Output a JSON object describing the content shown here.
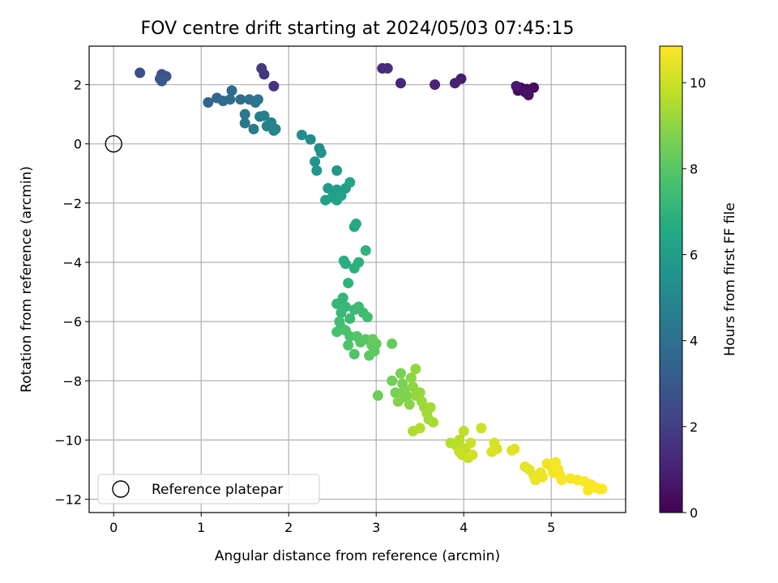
{
  "chart_data": {
    "type": "scatter",
    "title": "FOV centre drift starting at 2024/05/03 07:45:15",
    "xlabel": "Angular distance from reference (arcmin)",
    "ylabel": "Rotation from reference (arcmin)",
    "xlim": [
      -0.28,
      5.85
    ],
    "ylim": [
      -12.45,
      3.3
    ],
    "xticks": [
      0,
      1,
      2,
      3,
      4,
      5
    ],
    "yticks": [
      -12,
      -10,
      -8,
      -6,
      -4,
      -2,
      0,
      2
    ],
    "grid": true,
    "colormap": "viridis",
    "colorbar": {
      "label": "Hours from first FF file",
      "range": [
        0,
        10.85
      ],
      "ticks": [
        0,
        2,
        4,
        6,
        8,
        10
      ]
    },
    "legend": {
      "position": "lower-left",
      "entries": [
        "Reference platepar"
      ]
    },
    "reference_point": {
      "x": 0,
      "y": 0,
      "label": "Reference platepar"
    },
    "points": [
      {
        "x": 4.65,
        "y": 1.9,
        "t": 0.1
      },
      {
        "x": 4.72,
        "y": 1.85,
        "t": 0.2
      },
      {
        "x": 4.62,
        "y": 1.8,
        "t": 0.3
      },
      {
        "x": 4.8,
        "y": 1.9,
        "t": 0.4
      },
      {
        "x": 4.7,
        "y": 1.75,
        "t": 0.5
      },
      {
        "x": 4.74,
        "y": 1.65,
        "t": 0.6
      },
      {
        "x": 4.6,
        "y": 1.95,
        "t": 0.7
      },
      {
        "x": 3.97,
        "y": 2.2,
        "t": 0.9
      },
      {
        "x": 3.9,
        "y": 2.05,
        "t": 1.0
      },
      {
        "x": 3.67,
        "y": 2.0,
        "t": 1.1
      },
      {
        "x": 3.28,
        "y": 2.05,
        "t": 1.2
      },
      {
        "x": 3.07,
        "y": 2.55,
        "t": 1.35
      },
      {
        "x": 3.13,
        "y": 2.55,
        "t": 1.45
      },
      {
        "x": 1.83,
        "y": 1.95,
        "t": 1.6
      },
      {
        "x": 1.72,
        "y": 2.35,
        "t": 1.7
      },
      {
        "x": 1.69,
        "y": 2.55,
        "t": 1.8
      },
      {
        "x": 0.3,
        "y": 2.4,
        "t": 2.6
      },
      {
        "x": 0.55,
        "y": 2.35,
        "t": 2.75
      },
      {
        "x": 0.6,
        "y": 2.28,
        "t": 2.85
      },
      {
        "x": 0.53,
        "y": 2.2,
        "t": 2.95
      },
      {
        "x": 0.55,
        "y": 2.12,
        "t": 3.0
      },
      {
        "x": 1.08,
        "y": 1.4,
        "t": 3.5
      },
      {
        "x": 1.18,
        "y": 1.55,
        "t": 3.6
      },
      {
        "x": 1.25,
        "y": 1.45,
        "t": 3.7
      },
      {
        "x": 1.35,
        "y": 1.8,
        "t": 3.8
      },
      {
        "x": 1.33,
        "y": 1.5,
        "t": 3.85
      },
      {
        "x": 1.45,
        "y": 1.5,
        "t": 3.95
      },
      {
        "x": 1.55,
        "y": 1.5,
        "t": 4.05
      },
      {
        "x": 1.62,
        "y": 1.4,
        "t": 4.1
      },
      {
        "x": 1.65,
        "y": 1.5,
        "t": 4.2
      },
      {
        "x": 1.5,
        "y": 1.0,
        "t": 4.3
      },
      {
        "x": 1.5,
        "y": 0.7,
        "t": 4.35
      },
      {
        "x": 1.6,
        "y": 0.5,
        "t": 4.45
      },
      {
        "x": 1.67,
        "y": 0.92,
        "t": 4.55
      },
      {
        "x": 1.72,
        "y": 0.95,
        "t": 4.6
      },
      {
        "x": 1.8,
        "y": 0.72,
        "t": 4.7
      },
      {
        "x": 1.75,
        "y": 0.6,
        "t": 4.75
      },
      {
        "x": 1.83,
        "y": 0.45,
        "t": 4.85
      },
      {
        "x": 1.85,
        "y": 0.5,
        "t": 4.9
      },
      {
        "x": 2.15,
        "y": 0.3,
        "t": 5.2
      },
      {
        "x": 2.25,
        "y": 0.15,
        "t": 5.3
      },
      {
        "x": 2.35,
        "y": -0.15,
        "t": 5.4
      },
      {
        "x": 2.37,
        "y": -0.3,
        "t": 5.45
      },
      {
        "x": 2.3,
        "y": -0.6,
        "t": 5.55
      },
      {
        "x": 2.32,
        "y": -0.9,
        "t": 5.6
      },
      {
        "x": 2.55,
        "y": -0.9,
        "t": 5.75
      },
      {
        "x": 2.45,
        "y": -1.5,
        "t": 5.85
      },
      {
        "x": 2.55,
        "y": -1.55,
        "t": 5.95
      },
      {
        "x": 2.6,
        "y": -1.6,
        "t": 6.0
      },
      {
        "x": 2.65,
        "y": -1.5,
        "t": 6.05
      },
      {
        "x": 2.5,
        "y": -1.8,
        "t": 6.1
      },
      {
        "x": 2.42,
        "y": -1.9,
        "t": 6.15
      },
      {
        "x": 2.55,
        "y": -1.9,
        "t": 6.2
      },
      {
        "x": 2.6,
        "y": -1.75,
        "t": 6.25
      },
      {
        "x": 2.7,
        "y": -1.3,
        "t": 6.3
      },
      {
        "x": 2.75,
        "y": -2.8,
        "t": 6.5
      },
      {
        "x": 2.77,
        "y": -2.7,
        "t": 6.55
      },
      {
        "x": 2.63,
        "y": -3.95,
        "t": 6.75
      },
      {
        "x": 2.65,
        "y": -4.05,
        "t": 6.8
      },
      {
        "x": 2.75,
        "y": -4.2,
        "t": 6.85
      },
      {
        "x": 2.8,
        "y": -4.0,
        "t": 6.9
      },
      {
        "x": 2.88,
        "y": -3.6,
        "t": 6.95
      },
      {
        "x": 2.68,
        "y": -4.7,
        "t": 7.0
      },
      {
        "x": 2.62,
        "y": -5.2,
        "t": 7.1
      },
      {
        "x": 2.55,
        "y": -5.4,
        "t": 7.15
      },
      {
        "x": 2.65,
        "y": -5.5,
        "t": 7.2
      },
      {
        "x": 2.6,
        "y": -5.7,
        "t": 7.25
      },
      {
        "x": 2.7,
        "y": -5.9,
        "t": 7.3
      },
      {
        "x": 2.75,
        "y": -5.6,
        "t": 7.35
      },
      {
        "x": 2.8,
        "y": -5.5,
        "t": 7.4
      },
      {
        "x": 2.85,
        "y": -5.7,
        "t": 7.45
      },
      {
        "x": 2.9,
        "y": -5.85,
        "t": 7.5
      },
      {
        "x": 2.58,
        "y": -6.0,
        "t": 7.55
      },
      {
        "x": 2.6,
        "y": -6.2,
        "t": 7.6
      },
      {
        "x": 2.55,
        "y": -6.35,
        "t": 7.65
      },
      {
        "x": 2.65,
        "y": -6.3,
        "t": 7.7
      },
      {
        "x": 2.7,
        "y": -6.5,
        "t": 7.75
      },
      {
        "x": 2.68,
        "y": -6.8,
        "t": 7.8
      },
      {
        "x": 2.75,
        "y": -7.1,
        "t": 7.85
      },
      {
        "x": 2.78,
        "y": -6.5,
        "t": 7.9
      },
      {
        "x": 2.82,
        "y": -6.7,
        "t": 7.95
      },
      {
        "x": 2.88,
        "y": -6.6,
        "t": 8.0
      },
      {
        "x": 2.92,
        "y": -7.15,
        "t": 8.05
      },
      {
        "x": 2.95,
        "y": -6.8,
        "t": 8.1
      },
      {
        "x": 2.98,
        "y": -7.0,
        "t": 8.15
      },
      {
        "x": 3.0,
        "y": -6.75,
        "t": 8.2
      },
      {
        "x": 2.96,
        "y": -6.6,
        "t": 8.25
      },
      {
        "x": 3.18,
        "y": -6.75,
        "t": 8.3
      },
      {
        "x": 3.02,
        "y": -8.5,
        "t": 8.4
      },
      {
        "x": 3.18,
        "y": -8.0,
        "t": 8.5
      },
      {
        "x": 3.22,
        "y": -8.4,
        "t": 8.55
      },
      {
        "x": 3.28,
        "y": -7.75,
        "t": 8.6
      },
      {
        "x": 3.3,
        "y": -8.1,
        "t": 8.65
      },
      {
        "x": 3.32,
        "y": -8.3,
        "t": 8.7
      },
      {
        "x": 3.35,
        "y": -8.5,
        "t": 8.75
      },
      {
        "x": 3.28,
        "y": -8.6,
        "t": 8.8
      },
      {
        "x": 3.25,
        "y": -8.7,
        "t": 8.85
      },
      {
        "x": 3.38,
        "y": -8.8,
        "t": 8.9
      },
      {
        "x": 3.4,
        "y": -7.9,
        "t": 8.95
      },
      {
        "x": 3.42,
        "y": -8.2,
        "t": 9.0
      },
      {
        "x": 3.45,
        "y": -7.6,
        "t": 9.05
      },
      {
        "x": 3.45,
        "y": -8.5,
        "t": 9.1
      },
      {
        "x": 3.5,
        "y": -8.4,
        "t": 9.15
      },
      {
        "x": 3.52,
        "y": -8.7,
        "t": 9.2
      },
      {
        "x": 3.55,
        "y": -8.9,
        "t": 9.25
      },
      {
        "x": 3.58,
        "y": -9.1,
        "t": 9.3
      },
      {
        "x": 3.6,
        "y": -9.3,
        "t": 9.35
      },
      {
        "x": 3.62,
        "y": -8.9,
        "t": 9.4
      },
      {
        "x": 3.65,
        "y": -9.4,
        "t": 9.45
      },
      {
        "x": 3.42,
        "y": -9.7,
        "t": 9.5
      },
      {
        "x": 3.5,
        "y": -9.6,
        "t": 9.55
      },
      {
        "x": 3.85,
        "y": -10.1,
        "t": 9.6
      },
      {
        "x": 3.92,
        "y": -10.2,
        "t": 9.65
      },
      {
        "x": 3.95,
        "y": -10.0,
        "t": 9.7
      },
      {
        "x": 4.0,
        "y": -9.7,
        "t": 9.75
      },
      {
        "x": 4.02,
        "y": -10.3,
        "t": 9.8
      },
      {
        "x": 3.98,
        "y": -10.5,
        "t": 9.85
      },
      {
        "x": 3.95,
        "y": -10.4,
        "t": 9.9
      },
      {
        "x": 4.05,
        "y": -10.6,
        "t": 9.95
      },
      {
        "x": 4.08,
        "y": -10.1,
        "t": 10.0
      },
      {
        "x": 4.2,
        "y": -9.6,
        "t": 10.05
      },
      {
        "x": 4.1,
        "y": -10.5,
        "t": 10.1
      },
      {
        "x": 4.35,
        "y": -10.1,
        "t": 10.15
      },
      {
        "x": 4.38,
        "y": -10.3,
        "t": 10.2
      },
      {
        "x": 4.32,
        "y": -10.4,
        "t": 10.25
      },
      {
        "x": 4.55,
        "y": -10.35,
        "t": 10.3
      },
      {
        "x": 4.58,
        "y": -10.3,
        "t": 10.35
      },
      {
        "x": 4.7,
        "y": -10.9,
        "t": 10.4
      },
      {
        "x": 4.75,
        "y": -11.0,
        "t": 10.45
      },
      {
        "x": 4.8,
        "y": -11.2,
        "t": 10.5
      },
      {
        "x": 4.82,
        "y": -11.35,
        "t": 10.52
      },
      {
        "x": 4.88,
        "y": -11.1,
        "t": 10.55
      },
      {
        "x": 4.9,
        "y": -11.25,
        "t": 10.58
      },
      {
        "x": 4.95,
        "y": -10.8,
        "t": 10.6
      },
      {
        "x": 5.0,
        "y": -10.9,
        "t": 10.62
      },
      {
        "x": 5.02,
        "y": -11.1,
        "t": 10.65
      },
      {
        "x": 5.05,
        "y": -10.75,
        "t": 10.67
      },
      {
        "x": 5.08,
        "y": -11.0,
        "t": 10.7
      },
      {
        "x": 5.1,
        "y": -11.2,
        "t": 10.72
      },
      {
        "x": 5.12,
        "y": -11.35,
        "t": 10.74
      },
      {
        "x": 5.22,
        "y": -11.3,
        "t": 10.76
      },
      {
        "x": 5.3,
        "y": -11.35,
        "t": 10.78
      },
      {
        "x": 5.38,
        "y": -11.4,
        "t": 10.8
      },
      {
        "x": 5.42,
        "y": -11.7,
        "t": 10.81
      },
      {
        "x": 5.45,
        "y": -11.5,
        "t": 10.82
      },
      {
        "x": 5.5,
        "y": -11.6,
        "t": 10.83
      },
      {
        "x": 5.55,
        "y": -11.65,
        "t": 10.84
      },
      {
        "x": 5.58,
        "y": -11.65,
        "t": 10.85
      }
    ]
  }
}
